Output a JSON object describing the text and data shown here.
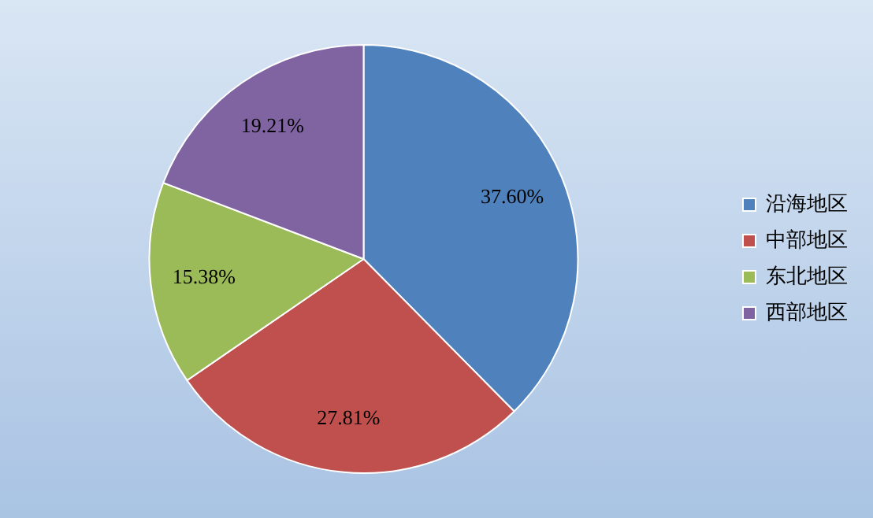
{
  "chart_data": {
    "type": "pie",
    "categories": [
      "沿海地区",
      "中部地区",
      "东北地区",
      "西部地区"
    ],
    "values": [
      37.6,
      27.81,
      15.38,
      19.21
    ],
    "colors": [
      "#4f81bd",
      "#c0504d",
      "#9bbb59",
      "#8064a2"
    ],
    "value_labels": [
      "37.60%",
      "27.81%",
      "15.38%",
      "19.21%"
    ],
    "legend": "right"
  }
}
